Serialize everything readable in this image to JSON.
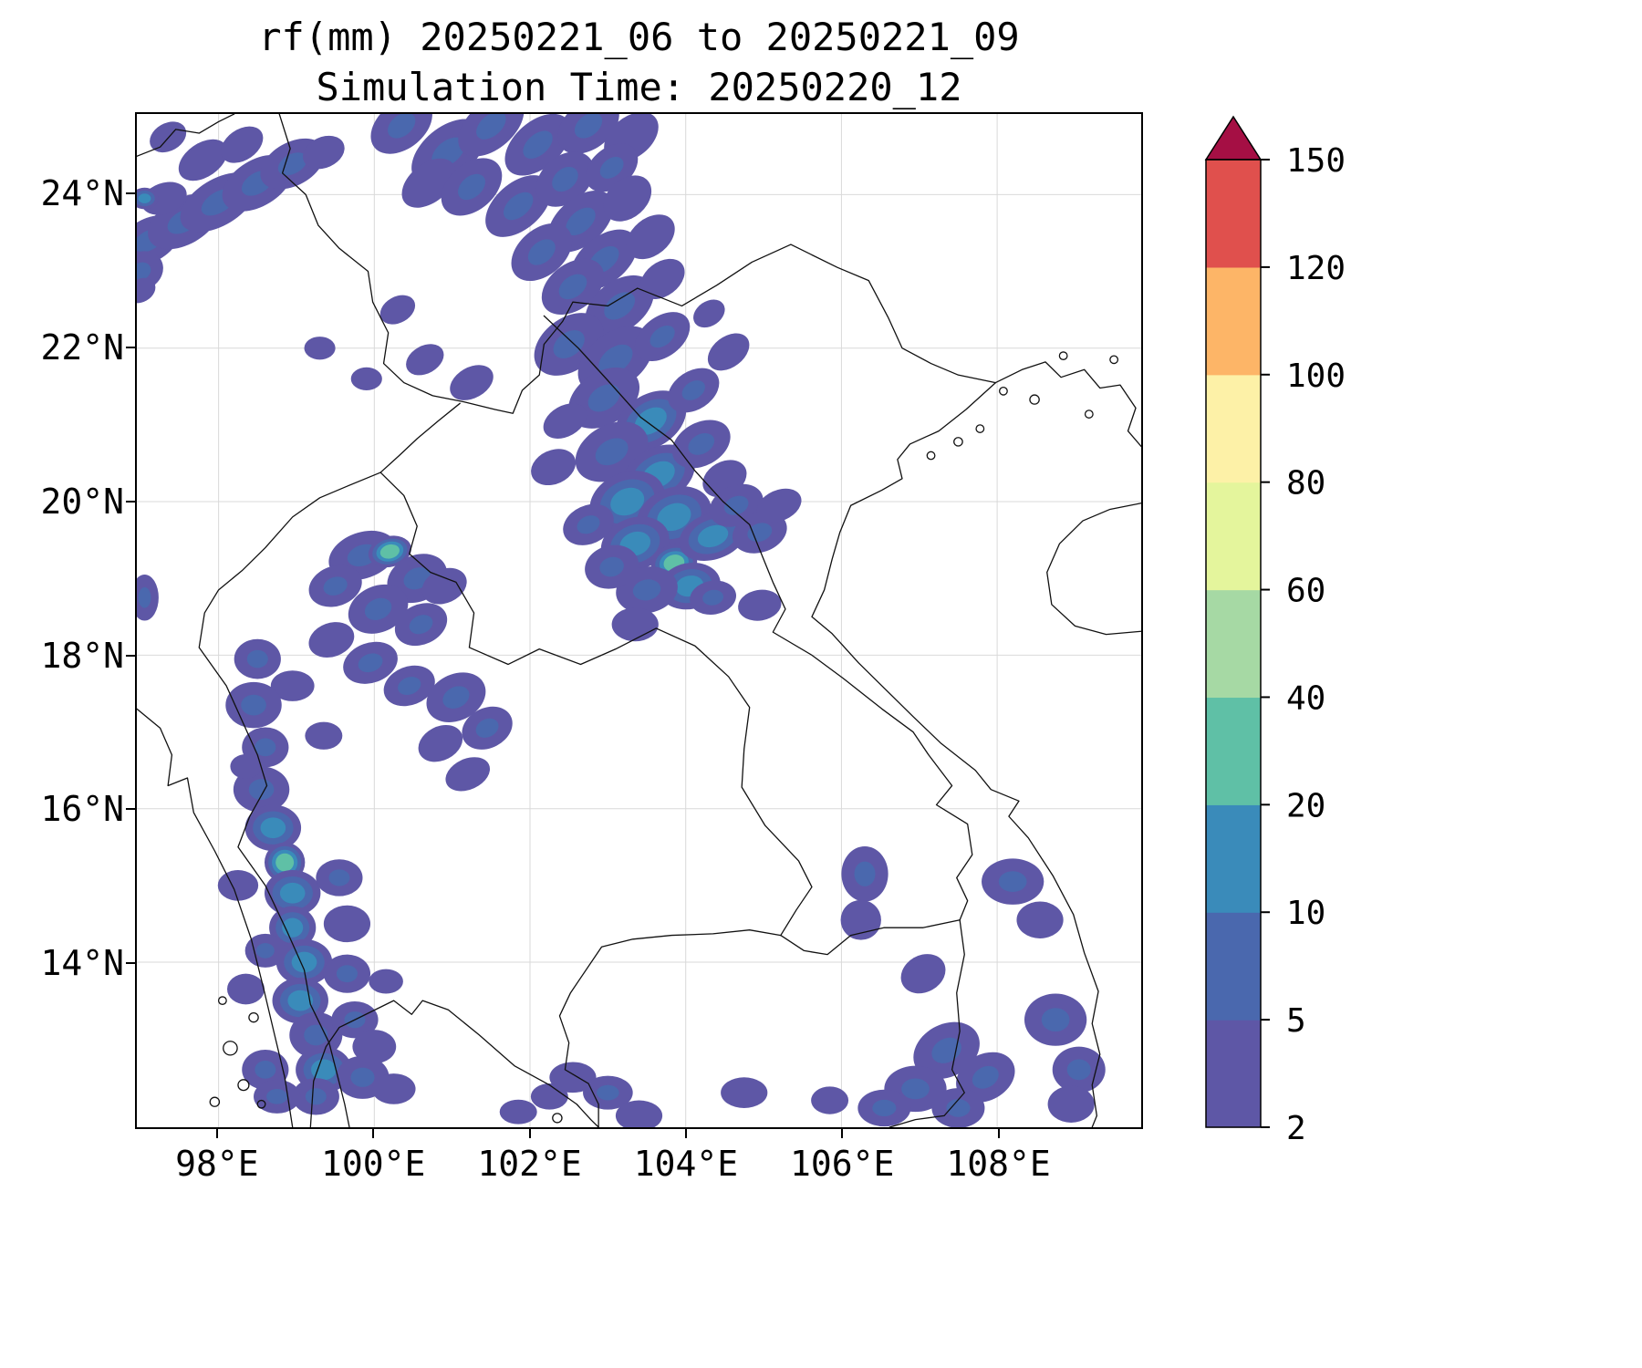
{
  "title": {
    "line1": "rf(mm) 20250221_06 to 20250221_09",
    "line2": "Simulation Time: 20250220_12"
  },
  "chart_data": {
    "type": "heatmap",
    "title": "rf(mm) 20250221_06 to 20250221_09",
    "subtitle": "Simulation Time: 20250220_12",
    "variable": "rf",
    "units": "mm",
    "accumulation_window": "20250221_06 to 20250221_09",
    "simulation_time": "20250220_12",
    "region": "map with national borders, lon 97E-110E, lat 12N-25N",
    "grid": true,
    "grid_color": "#d9d9d9",
    "x_axis": {
      "range": [
        96.95,
        109.85
      ],
      "ticks": [
        {
          "value": 98,
          "label": "98°E"
        },
        {
          "value": 100,
          "label": "100°E"
        },
        {
          "value": 102,
          "label": "102°E"
        },
        {
          "value": 104,
          "label": "104°E"
        },
        {
          "value": 106,
          "label": "106°E"
        },
        {
          "value": 108,
          "label": "108°E"
        }
      ]
    },
    "y_axis": {
      "range": [
        11.85,
        25.05
      ],
      "ticks": [
        {
          "value": 14,
          "label": "14°N"
        },
        {
          "value": 16,
          "label": "16°N"
        },
        {
          "value": 18,
          "label": "18°N"
        },
        {
          "value": 20,
          "label": "20°N"
        },
        {
          "value": 22,
          "label": "22°N"
        },
        {
          "value": 24,
          "label": "24°N"
        }
      ]
    },
    "colorbar": {
      "levels": [
        2,
        5,
        10,
        20,
        40,
        60,
        80,
        100,
        120,
        150
      ],
      "tick_labels": [
        "2",
        "5",
        "10",
        "20",
        "40",
        "60",
        "80",
        "100",
        "120",
        "150"
      ],
      "interval_colors": [
        "#5e57a6",
        "#4a68ae",
        "#3a8bba",
        "#5fc0a6",
        "#a6d9a4",
        "#e4f59c",
        "#fdf1a7",
        "#fdb567",
        "#e0504d"
      ],
      "over_color": "#a50f44",
      "extend": "max",
      "position": "right"
    },
    "rain_cells_format": "[lon_deg_e, lat_deg_n, rf_mm, rx_deg, ry_deg, rot_deg]",
    "rain_cells": [
      [
        97.1,
        23.4,
        8,
        0.45,
        0.28,
        -30
      ],
      [
        97.55,
        23.65,
        5,
        0.5,
        0.3,
        -30
      ],
      [
        98.0,
        23.9,
        9,
        0.55,
        0.3,
        -32
      ],
      [
        98.5,
        24.15,
        5,
        0.5,
        0.3,
        -32
      ],
      [
        98.95,
        24.4,
        7,
        0.45,
        0.28,
        -30
      ],
      [
        97.3,
        23.95,
        4,
        0.3,
        0.2,
        -20
      ],
      [
        97.8,
        24.45,
        4,
        0.35,
        0.22,
        -35
      ],
      [
        98.3,
        24.65,
        3,
        0.3,
        0.2,
        -35
      ],
      [
        97.05,
        23.95,
        12,
        0.18,
        0.14,
        0
      ],
      [
        99.35,
        24.55,
        3,
        0.28,
        0.2,
        -25
      ],
      [
        97.35,
        24.75,
        3,
        0.25,
        0.18,
        -30
      ],
      [
        97.0,
        23.0,
        5,
        0.3,
        0.25,
        -30
      ],
      [
        97.0,
        22.75,
        3,
        0.2,
        0.15,
        -30
      ],
      [
        99.3,
        22.0,
        3,
        0.2,
        0.15,
        0
      ],
      [
        99.9,
        21.6,
        3,
        0.2,
        0.15,
        0
      ],
      [
        100.35,
        24.9,
        5,
        0.45,
        0.3,
        -40
      ],
      [
        100.95,
        24.55,
        7,
        0.55,
        0.33,
        -40
      ],
      [
        101.5,
        24.9,
        8,
        0.5,
        0.3,
        -42
      ],
      [
        102.1,
        24.65,
        6,
        0.5,
        0.3,
        -42
      ],
      [
        102.75,
        24.9,
        7,
        0.45,
        0.3,
        -40
      ],
      [
        103.3,
        24.75,
        4,
        0.4,
        0.26,
        -40
      ],
      [
        100.7,
        24.15,
        3,
        0.4,
        0.25,
        -40
      ],
      [
        101.25,
        24.1,
        6,
        0.45,
        0.3,
        -42
      ],
      [
        101.85,
        23.85,
        5,
        0.5,
        0.3,
        -42
      ],
      [
        102.45,
        24.2,
        7,
        0.42,
        0.3,
        -42
      ],
      [
        103.05,
        24.35,
        5,
        0.38,
        0.26,
        -40
      ],
      [
        102.65,
        23.65,
        6,
        0.5,
        0.3,
        -42
      ],
      [
        103.25,
        23.95,
        4,
        0.35,
        0.25,
        -42
      ],
      [
        102.15,
        23.25,
        5,
        0.45,
        0.3,
        -42
      ],
      [
        102.95,
        23.15,
        7,
        0.5,
        0.3,
        -40
      ],
      [
        103.55,
        23.45,
        4,
        0.35,
        0.24,
        -40
      ],
      [
        102.55,
        22.8,
        6,
        0.45,
        0.3,
        -38
      ],
      [
        103.15,
        22.55,
        8,
        0.5,
        0.32,
        -38
      ],
      [
        103.7,
        22.9,
        4,
        0.32,
        0.22,
        -38
      ],
      [
        104.3,
        22.45,
        3,
        0.22,
        0.16,
        -35
      ],
      [
        102.5,
        22.05,
        7,
        0.5,
        0.34,
        -38
      ],
      [
        103.1,
        21.85,
        9,
        0.55,
        0.35,
        -38
      ],
      [
        103.7,
        22.15,
        5,
        0.4,
        0.26,
        -38
      ],
      [
        102.95,
        21.35,
        8,
        0.5,
        0.34,
        -34
      ],
      [
        103.55,
        21.05,
        10,
        0.5,
        0.34,
        -34
      ],
      [
        104.1,
        21.45,
        5,
        0.36,
        0.25,
        -34
      ],
      [
        103.05,
        20.65,
        9,
        0.5,
        0.35,
        -30
      ],
      [
        103.65,
        20.35,
        12,
        0.5,
        0.35,
        -30
      ],
      [
        104.2,
        20.75,
        6,
        0.4,
        0.28,
        -30
      ],
      [
        102.45,
        21.05,
        4,
        0.3,
        0.2,
        -30
      ],
      [
        104.55,
        21.95,
        3,
        0.3,
        0.2,
        -38
      ],
      [
        104.5,
        20.3,
        4,
        0.3,
        0.22,
        -30
      ],
      [
        100.65,
        21.85,
        3,
        0.26,
        0.18,
        -30
      ],
      [
        101.25,
        21.55,
        4,
        0.3,
        0.2,
        -30
      ],
      [
        100.3,
        22.5,
        3,
        0.24,
        0.17,
        -30
      ],
      [
        102.3,
        20.45,
        4,
        0.3,
        0.22,
        -25
      ],
      [
        103.25,
        20.0,
        10,
        0.5,
        0.38,
        -24
      ],
      [
        103.85,
        19.8,
        14,
        0.5,
        0.38,
        -24
      ],
      [
        103.35,
        19.45,
        18,
        0.45,
        0.34,
        -20
      ],
      [
        103.85,
        19.2,
        25,
        0.3,
        0.24,
        -15
      ],
      [
        104.35,
        19.55,
        12,
        0.45,
        0.3,
        -20
      ],
      [
        104.05,
        18.9,
        10,
        0.4,
        0.3,
        -12
      ],
      [
        103.5,
        18.85,
        7,
        0.4,
        0.3,
        -12
      ],
      [
        104.65,
        19.95,
        6,
        0.36,
        0.26,
        -24
      ],
      [
        104.95,
        19.6,
        8,
        0.36,
        0.26,
        -20
      ],
      [
        105.2,
        19.95,
        4,
        0.3,
        0.2,
        -24
      ],
      [
        102.75,
        19.7,
        5,
        0.34,
        0.25,
        -25
      ],
      [
        103.05,
        19.15,
        8,
        0.35,
        0.28,
        -15
      ],
      [
        104.35,
        18.75,
        5,
        0.3,
        0.22,
        -10
      ],
      [
        104.95,
        18.65,
        4,
        0.28,
        0.2,
        -10
      ],
      [
        103.35,
        18.4,
        4,
        0.3,
        0.22,
        0
      ],
      [
        99.85,
        19.3,
        8,
        0.45,
        0.3,
        -20
      ],
      [
        100.2,
        19.35,
        20,
        0.28,
        0.2,
        -15
      ],
      [
        100.55,
        19.0,
        8,
        0.4,
        0.3,
        -25
      ],
      [
        99.5,
        18.9,
        5,
        0.35,
        0.26,
        -20
      ],
      [
        100.05,
        18.6,
        7,
        0.4,
        0.3,
        -25
      ],
      [
        100.6,
        18.4,
        5,
        0.35,
        0.26,
        -25
      ],
      [
        99.45,
        18.2,
        4,
        0.3,
        0.22,
        -20
      ],
      [
        99.95,
        17.9,
        6,
        0.36,
        0.26,
        -20
      ],
      [
        100.45,
        17.6,
        5,
        0.34,
        0.25,
        -22
      ],
      [
        101.05,
        17.45,
        7,
        0.4,
        0.3,
        -28
      ],
      [
        101.45,
        17.05,
        5,
        0.34,
        0.26,
        -28
      ],
      [
        100.85,
        16.85,
        4,
        0.3,
        0.22,
        -28
      ],
      [
        101.2,
        16.45,
        4,
        0.3,
        0.2,
        -25
      ],
      [
        98.95,
        17.6,
        4,
        0.28,
        0.2,
        0
      ],
      [
        99.35,
        16.95,
        3,
        0.24,
        0.18,
        0
      ],
      [
        100.9,
        18.9,
        4,
        0.3,
        0.22,
        -25
      ],
      [
        97.05,
        18.75,
        6,
        0.18,
        0.3,
        0
      ],
      [
        98.5,
        17.95,
        5,
        0.3,
        0.26,
        0
      ],
      [
        98.45,
        17.35,
        7,
        0.36,
        0.3,
        0
      ],
      [
        98.6,
        16.8,
        5,
        0.3,
        0.26,
        0
      ],
      [
        98.55,
        16.25,
        8,
        0.36,
        0.3,
        0
      ],
      [
        98.7,
        15.75,
        10,
        0.36,
        0.3,
        0
      ],
      [
        98.85,
        15.3,
        22,
        0.26,
        0.26,
        0
      ],
      [
        98.95,
        14.9,
        12,
        0.36,
        0.3,
        0
      ],
      [
        98.95,
        14.45,
        18,
        0.3,
        0.28,
        0
      ],
      [
        99.1,
        14.0,
        10,
        0.36,
        0.3,
        0
      ],
      [
        99.05,
        13.5,
        12,
        0.36,
        0.3,
        0
      ],
      [
        99.25,
        13.05,
        8,
        0.34,
        0.3,
        0
      ],
      [
        99.35,
        12.6,
        10,
        0.36,
        0.3,
        0
      ],
      [
        99.25,
        12.25,
        7,
        0.3,
        0.24,
        0
      ],
      [
        99.65,
        13.85,
        6,
        0.3,
        0.25,
        0
      ],
      [
        99.75,
        13.25,
        5,
        0.3,
        0.24,
        0
      ],
      [
        99.85,
        12.5,
        6,
        0.34,
        0.28,
        0
      ],
      [
        99.55,
        15.1,
        5,
        0.3,
        0.24,
        0
      ],
      [
        99.65,
        14.5,
        4,
        0.3,
        0.24,
        0
      ],
      [
        98.25,
        15.0,
        4,
        0.26,
        0.2,
        0
      ],
      [
        100.0,
        12.9,
        4,
        0.28,
        0.22,
        0
      ],
      [
        100.25,
        12.35,
        4,
        0.28,
        0.2,
        0
      ],
      [
        98.35,
        16.55,
        3,
        0.2,
        0.16,
        0
      ],
      [
        98.6,
        14.15,
        6,
        0.26,
        0.22,
        0
      ],
      [
        98.35,
        13.65,
        4,
        0.24,
        0.2,
        0
      ],
      [
        98.6,
        12.6,
        8,
        0.3,
        0.26,
        0
      ],
      [
        98.75,
        12.25,
        6,
        0.3,
        0.22,
        0
      ],
      [
        100.15,
        13.75,
        3,
        0.22,
        0.16,
        0
      ],
      [
        102.55,
        12.5,
        4,
        0.3,
        0.2,
        0
      ],
      [
        103.0,
        12.3,
        5,
        0.32,
        0.22,
        0
      ],
      [
        102.25,
        12.25,
        3,
        0.24,
        0.17,
        0
      ],
      [
        103.4,
        12.0,
        4,
        0.3,
        0.2,
        0
      ],
      [
        104.75,
        12.3,
        4,
        0.3,
        0.2,
        0
      ],
      [
        101.85,
        12.05,
        3,
        0.24,
        0.16,
        0
      ],
      [
        106.3,
        15.15,
        6,
        0.3,
        0.36,
        0
      ],
      [
        106.25,
        14.55,
        4,
        0.26,
        0.26,
        0
      ],
      [
        108.2,
        15.05,
        6,
        0.4,
        0.3,
        0
      ],
      [
        108.55,
        14.55,
        4,
        0.3,
        0.24,
        0
      ],
      [
        107.05,
        13.85,
        4,
        0.3,
        0.24,
        -30
      ],
      [
        107.35,
        12.85,
        8,
        0.45,
        0.34,
        -30
      ],
      [
        107.85,
        12.5,
        6,
        0.4,
        0.3,
        -30
      ],
      [
        106.95,
        12.35,
        7,
        0.4,
        0.3,
        0
      ],
      [
        106.55,
        12.1,
        5,
        0.34,
        0.24,
        0
      ],
      [
        108.75,
        13.25,
        7,
        0.4,
        0.34,
        0
      ],
      [
        109.05,
        12.6,
        5,
        0.34,
        0.3,
        0
      ],
      [
        108.95,
        12.15,
        4,
        0.3,
        0.24,
        0
      ],
      [
        107.5,
        12.1,
        5,
        0.34,
        0.26,
        0
      ],
      [
        105.85,
        12.2,
        3,
        0.24,
        0.18,
        0
      ]
    ]
  }
}
